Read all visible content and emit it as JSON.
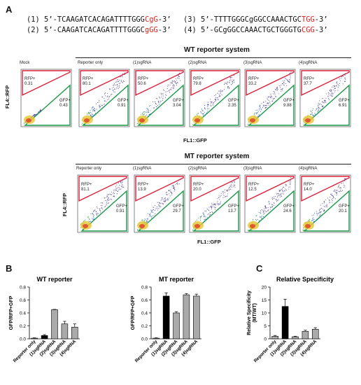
{
  "panels": {
    "a": "A",
    "b": "B",
    "c": "C"
  },
  "sequences": [
    {
      "num": "(1)",
      "prefix": "5’-TCAAGATCACAGATTTTGGG",
      "pam": "CgG",
      "suffix": "-3’"
    },
    {
      "num": "(2)",
      "prefix": "5’-CAAGATCACAGATTTTGGGC",
      "pam": "gGG",
      "suffix": "-3’"
    },
    {
      "num": "(3)",
      "prefix": "5’-TTTTGGGCgGGCCAAACTGC",
      "pam": "TGG",
      "suffix": "-3’"
    },
    {
      "num": "(4)",
      "prefix": "5’-GCgGGCCAAACTGCTGGGTG",
      "pam": "CGG",
      "suffix": "-3’"
    }
  ],
  "flow": {
    "wt_title": "WT reporter system",
    "mt_title": "MT reporter system",
    "y_axis": "FL4::RFP",
    "x_axis_wt": "FL1::GFP",
    "x_axis_mt": "FL1::GFP",
    "gate_rfp": "RFP+",
    "gate_gfp": "GFP+",
    "wt_plots": [
      {
        "label": "Mock",
        "rfp": "0.31",
        "gfp": "0.43"
      },
      {
        "label": "Reporter only",
        "rfp": "80.1",
        "gfp": "0.91"
      },
      {
        "label": "(1)sgRNA",
        "rfp": "50.6",
        "gfp": "3.04"
      },
      {
        "label": "(2)sgRNA",
        "rfp": "79.8",
        "gfp": "2.35"
      },
      {
        "label": "(3)sgRNA",
        "rfp": "33.2",
        "gfp": "9.88"
      },
      {
        "label": "(4)sgRNA",
        "rfp": "37.7",
        "gfp": "6.91"
      }
    ],
    "mt_plots": [
      {
        "label": "Reporter only",
        "rfp": "81.1",
        "gfp": "0.91"
      },
      {
        "label": "(1)sgRNA",
        "rfp": "13.9",
        "gfp": "29.7"
      },
      {
        "label": "(2)sgRNA",
        "rfp": "20.0",
        "gfp": "13.7"
      },
      {
        "label": "(3)sgRNA",
        "rfp": "12.5",
        "gfp": "24.6"
      },
      {
        "label": "(4)sgRNA",
        "rfp": "14.0",
        "gfp": "20.1"
      }
    ]
  },
  "chart_data": [
    {
      "type": "bar",
      "title": "WT reporter",
      "ylabel": "GFP/RFP+GFP",
      "xlabel": "",
      "categories": [
        "Reporter only",
        "(1)sgRNA",
        "(2)sgRNA",
        "(3)sgRNA",
        "(4)sgRNA"
      ],
      "values": [
        0.01,
        0.05,
        0.45,
        0.23,
        0.18
      ],
      "errors": [
        0.005,
        0.015,
        0.005,
        0.04,
        0.05
      ],
      "colors": [
        "#aaaaaa",
        "#000000",
        "#aaaaaa",
        "#aaaaaa",
        "#aaaaaa"
      ],
      "ylim": [
        0,
        0.8
      ],
      "yticks": [
        "0.0",
        "0.2",
        "0.4",
        "0.6",
        "0.8"
      ]
    },
    {
      "type": "bar",
      "title": "MT reporter",
      "ylabel": "GFP/RFP+GFP",
      "xlabel": "",
      "categories": [
        "Reporter only",
        "(1)sgRNA",
        "(2)sgRNA",
        "(3)sgRNA",
        "(4)sgRNA"
      ],
      "values": [
        0.01,
        0.66,
        0.4,
        0.68,
        0.66
      ],
      "errors": [
        0.005,
        0.05,
        0.02,
        0.02,
        0.03
      ],
      "colors": [
        "#aaaaaa",
        "#000000",
        "#aaaaaa",
        "#aaaaaa",
        "#aaaaaa"
      ],
      "ylim": [
        0,
        0.8
      ],
      "yticks": [
        "0.0",
        "0.2",
        "0.4",
        "0.6",
        "0.8"
      ]
    },
    {
      "type": "bar",
      "title": "Relative Specificity",
      "ylabel": "Relative Specificity\n(MT/WT)",
      "xlabel": "",
      "categories": [
        "Reporter only",
        "(1)sgRNA",
        "(2)sgRNA",
        "(3)sgRNA",
        "(4)sgRNA"
      ],
      "values": [
        1,
        12.5,
        0.8,
        2.9,
        3.7
      ],
      "errors": [
        0.3,
        2.8,
        0.2,
        0.4,
        0.6
      ],
      "colors": [
        "#aaaaaa",
        "#000000",
        "#aaaaaa",
        "#aaaaaa",
        "#aaaaaa"
      ],
      "ylim": [
        0,
        20
      ],
      "yticks": [
        "0",
        "5",
        "10",
        "15",
        "20"
      ]
    }
  ]
}
